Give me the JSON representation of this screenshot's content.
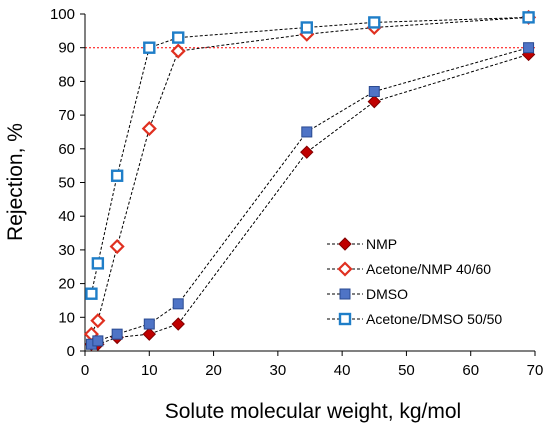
{
  "chart_data": {
    "type": "line",
    "xlabel": "Solute molecular weight, kg/mol",
    "ylabel": "Rejection, %",
    "xlim": [
      0,
      70
    ],
    "ylim": [
      0,
      100
    ],
    "x_ticks": [
      "0",
      "10",
      "20",
      "30",
      "40",
      "50",
      "60",
      "70"
    ],
    "y_ticks": [
      "0",
      "10",
      "20",
      "30",
      "40",
      "50",
      "60",
      "70",
      "80",
      "90",
      "100"
    ],
    "grid": false,
    "reference_line": {
      "y": 90,
      "color": "#ff0000",
      "style": "dotted"
    },
    "legend_position": "bottom-right",
    "series": [
      {
        "name": "NMP",
        "marker": "diamond",
        "fill": "#c00000",
        "stroke": "#800000",
        "hollow": false,
        "points": [
          [
            1,
            2
          ],
          [
            2,
            2
          ],
          [
            5,
            4
          ],
          [
            10,
            5
          ],
          [
            14.5,
            8
          ],
          [
            34.5,
            59
          ],
          [
            45,
            74
          ],
          [
            69,
            88
          ]
        ]
      },
      {
        "name": "Acetone/NMP 40/60",
        "marker": "diamond",
        "fill": "#ffffff",
        "stroke": "#e03020",
        "hollow": true,
        "points": [
          [
            1,
            5
          ],
          [
            2,
            9
          ],
          [
            5,
            31
          ],
          [
            10,
            66
          ],
          [
            14.5,
            89
          ],
          [
            34.5,
            94
          ],
          [
            45,
            96
          ],
          [
            69,
            99
          ]
        ]
      },
      {
        "name": "DMSO",
        "marker": "square",
        "fill": "#4f74c6",
        "stroke": "#2a4a90",
        "hollow": false,
        "points": [
          [
            1,
            2
          ],
          [
            2,
            3
          ],
          [
            5,
            5
          ],
          [
            10,
            8
          ],
          [
            14.5,
            14
          ],
          [
            34.5,
            65
          ],
          [
            45,
            77
          ],
          [
            69,
            90
          ]
        ]
      },
      {
        "name": "Acetone/DMSO 50/50",
        "marker": "square",
        "fill": "#ffffff",
        "stroke": "#1f7ec8",
        "hollow": true,
        "points": [
          [
            1,
            17
          ],
          [
            2,
            26
          ],
          [
            5,
            52
          ],
          [
            10,
            90
          ],
          [
            14.5,
            93
          ],
          [
            34.5,
            96
          ],
          [
            45,
            97.5
          ],
          [
            69,
            99
          ]
        ]
      }
    ]
  }
}
